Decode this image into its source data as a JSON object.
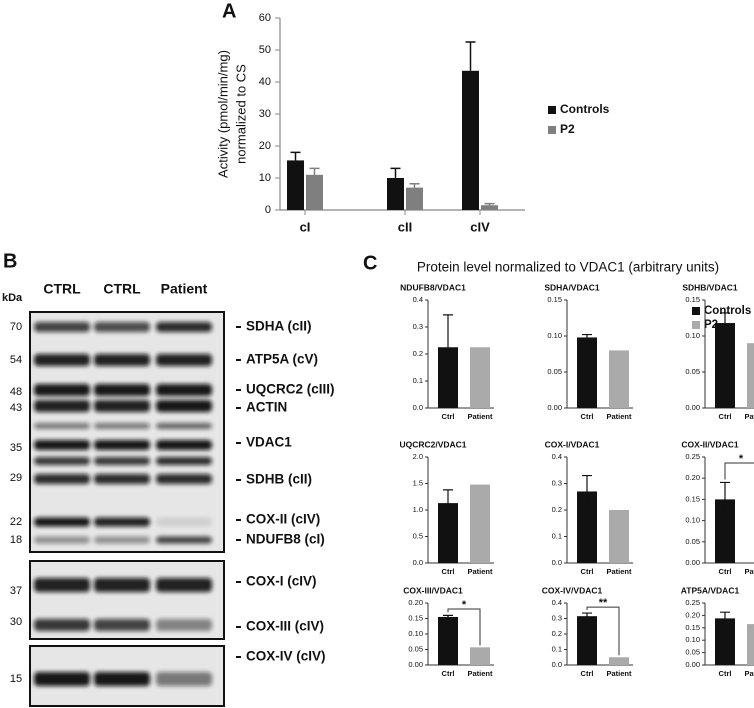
{
  "chart_data": [
    {
      "type": "bar",
      "panel_label": "A",
      "ylabel": [
        "Activity (pmol/min/mg)",
        "normalized to CS"
      ],
      "categories": [
        "cI",
        "cII",
        "cIV"
      ],
      "series": [
        {
          "name": "Controls",
          "color": "#111111",
          "values": [
            15.5,
            10,
            43.5
          ],
          "errors": [
            2.5,
            3,
            9
          ]
        },
        {
          "name": "P2",
          "color": "#7f7f7f",
          "values": [
            11,
            7,
            1.5
          ],
          "errors": [
            2,
            1.2,
            0.5
          ]
        }
      ],
      "ylim": [
        0,
        60
      ],
      "yticks": [
        0,
        10,
        20,
        30,
        40,
        50,
        60
      ]
    },
    {
      "type": "bar",
      "title": "NDUFB8/VDAC1",
      "categories": [
        "Ctrl",
        "Patient"
      ],
      "values": [
        0.225,
        0.225
      ],
      "errors": [
        0.12,
        null
      ],
      "ylim": [
        0,
        0.4
      ],
      "yticks": [
        {
          "value": 0,
          "label": "0.0"
        },
        0.1,
        0.2,
        0.3,
        0.4
      ]
    },
    {
      "type": "bar",
      "title": "SDHA/VDAC1",
      "categories": [
        "Ctrl",
        "Patient"
      ],
      "values": [
        0.098,
        0.08
      ],
      "errors": [
        0.004,
        null
      ],
      "ylim": [
        0,
        0.15
      ],
      "yticks": [
        {
          "value": 0,
          "label": "0.00"
        },
        0.05,
        {
          "value": 0.1,
          "label": "0.10"
        },
        0.15
      ]
    },
    {
      "type": "bar",
      "title": "SDHB/VDAC1",
      "categories": [
        "Ctrl",
        "Patient"
      ],
      "values": [
        0.118,
        0.09
      ],
      "errors": [
        0.014,
        null
      ],
      "ylim": [
        0,
        0.15
      ],
      "yticks": [
        {
          "value": 0,
          "label": "0.00"
        },
        0.05,
        {
          "value": 0.1,
          "label": "0.10"
        },
        0.15
      ]
    },
    {
      "type": "bar",
      "title": "UQCRC2/VDAC1",
      "categories": [
        "Ctrl",
        "Patient"
      ],
      "values": [
        1.13,
        1.48
      ],
      "errors": [
        0.25,
        null
      ],
      "ylim": [
        0,
        2
      ],
      "yticks": [
        {
          "value": 0,
          "label": "0.0"
        },
        0.5,
        {
          "value": 1,
          "label": "1.0"
        },
        1.5,
        {
          "value": 2,
          "label": "2.0"
        }
      ]
    },
    {
      "type": "bar",
      "title": "COX-I/VDAC1",
      "categories": [
        "Ctrl",
        "Patient"
      ],
      "values": [
        0.27,
        0.2
      ],
      "errors": [
        0.06,
        null
      ],
      "ylim": [
        0,
        0.4
      ],
      "yticks": [
        {
          "value": 0,
          "label": "0.0"
        },
        0.1,
        0.2,
        0.3,
        0.4
      ]
    },
    {
      "type": "bar",
      "title": "COX-II/VDAC1",
      "categories": [
        "Ctrl",
        "Patient"
      ],
      "values": [
        0.15,
        0
      ],
      "errors": [
        0.04,
        null
      ],
      "significance": "*",
      "ylim": [
        0,
        0.25
      ],
      "yticks": [
        {
          "value": 0,
          "label": "0.00"
        },
        0.05,
        {
          "value": 0.1,
          "label": "0.10"
        },
        0.15,
        {
          "value": 0.2,
          "label": "0.20"
        },
        0.25
      ]
    },
    {
      "type": "bar",
      "title": "COX-III/VDAC1",
      "categories": [
        "Ctrl",
        "Patient"
      ],
      "values": [
        0.155,
        0.057
      ],
      "errors": [
        0.005,
        null
      ],
      "significance": "*",
      "ylim": [
        0,
        0.2
      ],
      "yticks": [
        {
          "value": 0,
          "label": "0.00"
        },
        0.05,
        {
          "value": 0.1,
          "label": "0.10"
        },
        0.15,
        {
          "value": 0.2,
          "label": "0.20"
        }
      ]
    },
    {
      "type": "bar",
      "title": "COX-IV/VDAC1",
      "categories": [
        "Ctrl",
        "Patient"
      ],
      "values": [
        0.315,
        0.05
      ],
      "errors": [
        0.02,
        null
      ],
      "significance": "**",
      "ylim": [
        0,
        0.4
      ],
      "yticks": [
        {
          "value": 0,
          "label": "0.0"
        },
        0.1,
        0.2,
        0.3,
        0.4
      ]
    },
    {
      "type": "bar",
      "title": "ATP5A/VDAC1",
      "categories": [
        "Ctrl",
        "Patient"
      ],
      "values": [
        0.188,
        0.165
      ],
      "errors": [
        0.025,
        null
      ],
      "ylim": [
        0,
        0.25
      ],
      "yticks": [
        {
          "value": 0,
          "label": "0.00"
        },
        0.05,
        {
          "value": 0.1,
          "label": "0.10"
        },
        0.15,
        {
          "value": 0.2,
          "label": "0.20"
        },
        0.25
      ]
    }
  ],
  "panel_c": {
    "panel_label": "C",
    "title": "Protein level normalized to VDAC1 (arbitrary units)",
    "legend": [
      {
        "name": "Controls",
        "color": "#111111"
      },
      {
        "name": "P2",
        "color": "#aaaaaa"
      }
    ]
  },
  "blot": {
    "panel_label": "B",
    "unit": "kDa",
    "lanes": [
      "CTRL",
      "CTRL",
      "Patient"
    ],
    "markers": [
      "70",
      "54",
      "48",
      "43",
      "35",
      "29",
      "22",
      "18",
      "37",
      "30",
      "15"
    ],
    "labels": [
      "SDHA (cII)",
      "ATP5A (cV)",
      "UQCRC2 (cIII)",
      "ACTIN",
      "VDAC1",
      "SDHB (cII)",
      "COX-II (cIV)",
      "NDUFB8 (cI)",
      "COX-I (cIV)",
      "COX-III (cIV)",
      "COX-IV (cIV)"
    ]
  }
}
